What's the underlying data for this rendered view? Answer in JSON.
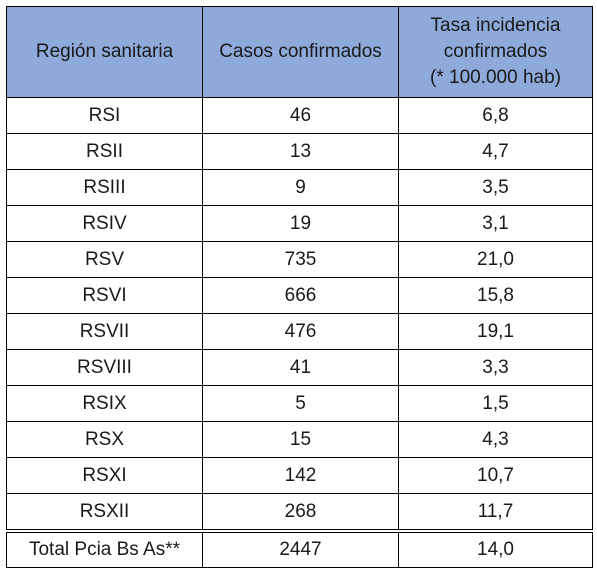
{
  "table": {
    "headers": [
      "Región sanitaria",
      "Casos confirmados",
      [
        "Tasa incidencia",
        "confirmados",
        "(* 100.000 hab)"
      ]
    ],
    "rows": [
      [
        "RSI",
        "46",
        "6,8"
      ],
      [
        "RSII",
        "13",
        "4,7"
      ],
      [
        "RSIII",
        "9",
        "3,5"
      ],
      [
        "RSIV",
        "19",
        "3,1"
      ],
      [
        "RSV",
        "735",
        "21,0"
      ],
      [
        "RSVI",
        "666",
        "15,8"
      ],
      [
        "RSVII",
        "476",
        "19,1"
      ],
      [
        "RSVIII",
        "41",
        "3,3"
      ],
      [
        "RSIX",
        "5",
        "1,5"
      ],
      [
        "RSX",
        "15",
        "4,3"
      ],
      [
        "RSXI",
        "142",
        "10,7"
      ],
      [
        "RSXII",
        "268",
        "11,7"
      ]
    ],
    "total": [
      "Total Pcia Bs As**",
      "2447",
      "14,0"
    ]
  }
}
